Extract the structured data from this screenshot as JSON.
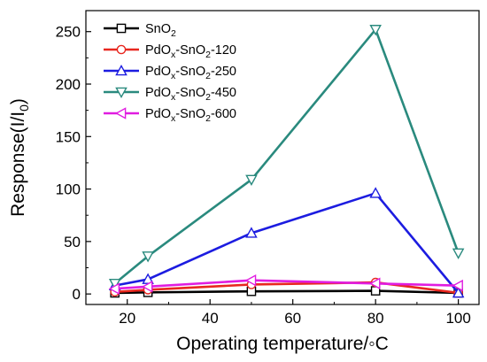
{
  "chart_data": {
    "type": "line",
    "xlabel": "Operating temperature/◦C",
    "ylabel": {
      "main": "Response(I/I",
      "sub": "0",
      "close": ")"
    },
    "xlim": [
      10,
      105
    ],
    "ylim": [
      -10,
      270
    ],
    "x_ticks": [
      20,
      40,
      60,
      80,
      100
    ],
    "y_ticks": [
      0,
      50,
      100,
      150,
      200,
      250
    ],
    "x": [
      17,
      25,
      50,
      80,
      100
    ],
    "series": [
      {
        "name": "SnO2",
        "label": {
          "a": "SnO",
          "sub1": "2",
          "b": "",
          "sub2": "",
          "c": ""
        },
        "color": "#000000",
        "marker": "square",
        "values": [
          1,
          1.5,
          2.5,
          3,
          1
        ]
      },
      {
        "name": "PdOx-SnO2-120",
        "label": {
          "a": "PdO",
          "sub1": "x",
          "b": "-SnO",
          "sub2": "2",
          "c": "-120"
        },
        "color": "#e8271f",
        "marker": "circle",
        "values": [
          2,
          4,
          9,
          11,
          1
        ]
      },
      {
        "name": "PdOx-SnO2-250",
        "label": {
          "a": "PdO",
          "sub1": "x",
          "b": "-SnO",
          "sub2": "2",
          "c": "-250"
        },
        "color": "#1c1ce0",
        "marker": "triangle-up",
        "values": [
          8,
          14,
          58,
          96,
          1
        ]
      },
      {
        "name": "PdOx-SnO2-450",
        "label": {
          "a": "PdO",
          "sub1": "x",
          "b": "-SnO",
          "sub2": "2",
          "c": "-450"
        },
        "color": "#2a8a7e",
        "marker": "triangle-down",
        "values": [
          10,
          36,
          109,
          252,
          39
        ]
      },
      {
        "name": "PdOx-SnO2-600",
        "label": {
          "a": "PdO",
          "sub1": "x",
          "b": "-SnO",
          "sub2": "2",
          "c": "-600"
        },
        "color": "#e01ce0",
        "marker": "triangle-left",
        "values": [
          5,
          7,
          13,
          10,
          8
        ]
      }
    ],
    "legend_position": "top-left",
    "grid": false
  }
}
